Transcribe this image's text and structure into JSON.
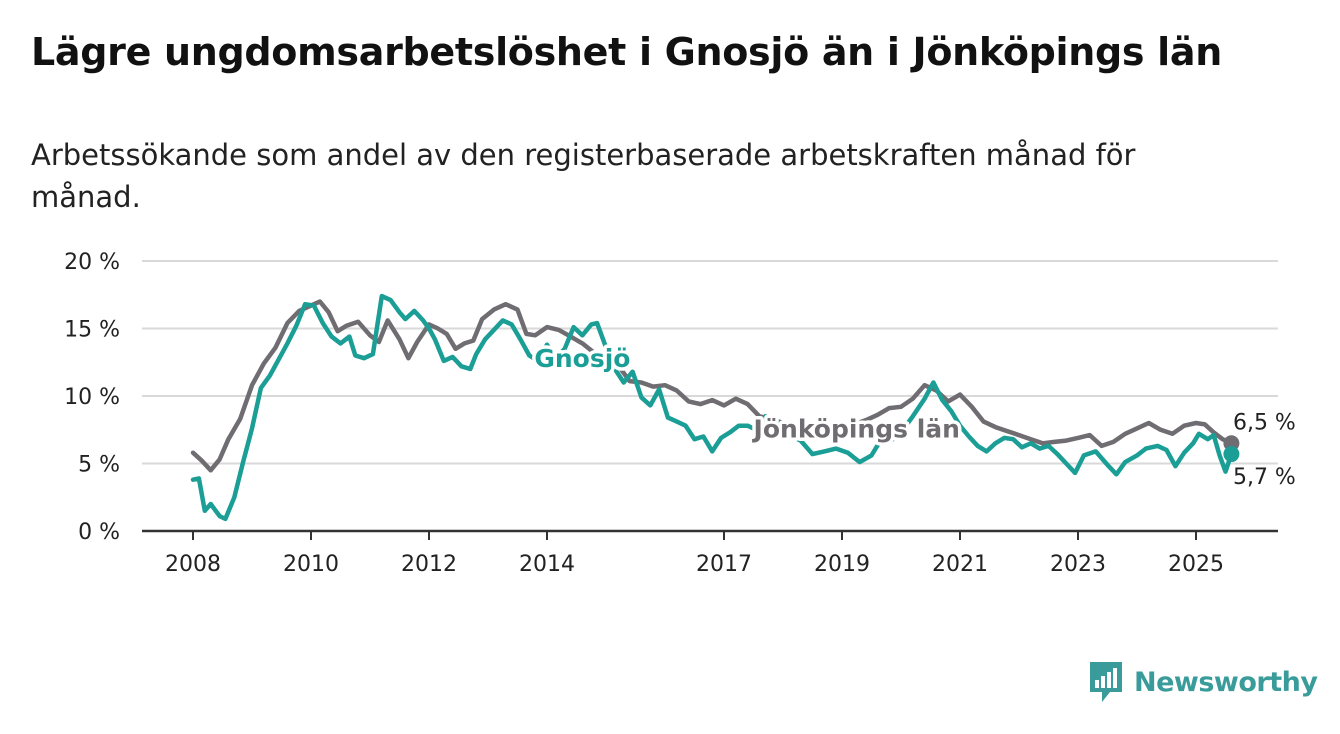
{
  "title": "Lägre ungdomsarbetslöshet i Gnosjö än i Jönköpings län",
  "subtitle": "Arbetssökande som andel av den registerbaserade arbetskraften månad för månad.",
  "brand": {
    "name": "Newsworthy",
    "icon": "newsworthy-logo-icon",
    "color": "#3a9b9b"
  },
  "chart_data": {
    "type": "line",
    "grid": true,
    "ylim": [
      0,
      20
    ],
    "xlim": [
      2007.6,
      2026.3
    ],
    "y_ticks": [
      {
        "value": 0,
        "label": "0 %"
      },
      {
        "value": 5,
        "label": "5 %"
      },
      {
        "value": 10,
        "label": "10 %"
      },
      {
        "value": 15,
        "label": "15 %"
      },
      {
        "value": 20,
        "label": "20 %"
      }
    ],
    "x_ticks": [
      {
        "value": 2008,
        "label": "2008"
      },
      {
        "value": 2010,
        "label": "2010"
      },
      {
        "value": 2012,
        "label": "2012"
      },
      {
        "value": 2014,
        "label": "2014"
      },
      {
        "value": 2017,
        "label": "2017"
      },
      {
        "value": 2019,
        "label": "2019"
      },
      {
        "value": 2021,
        "label": "2021"
      },
      {
        "value": 2023,
        "label": "2023"
      },
      {
        "value": 2025,
        "label": "2025"
      }
    ],
    "series": [
      {
        "name": "Jönköpings län",
        "color": "#6f6d72",
        "end_label": "6,5 %",
        "points": [
          [
            2008.0,
            5.8
          ],
          [
            2008.15,
            5.2
          ],
          [
            2008.3,
            4.5
          ],
          [
            2008.45,
            5.3
          ],
          [
            2008.6,
            6.8
          ],
          [
            2008.8,
            8.3
          ],
          [
            2009.0,
            10.8
          ],
          [
            2009.2,
            12.4
          ],
          [
            2009.4,
            13.6
          ],
          [
            2009.6,
            15.4
          ],
          [
            2009.8,
            16.3
          ],
          [
            2010.0,
            16.7
          ],
          [
            2010.15,
            17.0
          ],
          [
            2010.3,
            16.2
          ],
          [
            2010.45,
            14.8
          ],
          [
            2010.6,
            15.2
          ],
          [
            2010.8,
            15.5
          ],
          [
            2011.0,
            14.5
          ],
          [
            2011.15,
            14.0
          ],
          [
            2011.3,
            15.6
          ],
          [
            2011.5,
            14.2
          ],
          [
            2011.65,
            12.8
          ],
          [
            2011.8,
            14.0
          ],
          [
            2012.0,
            15.3
          ],
          [
            2012.15,
            15.0
          ],
          [
            2012.3,
            14.6
          ],
          [
            2012.45,
            13.5
          ],
          [
            2012.6,
            13.9
          ],
          [
            2012.75,
            14.1
          ],
          [
            2012.9,
            15.7
          ],
          [
            2013.1,
            16.4
          ],
          [
            2013.3,
            16.8
          ],
          [
            2013.5,
            16.4
          ],
          [
            2013.65,
            14.6
          ],
          [
            2013.8,
            14.5
          ],
          [
            2014.0,
            15.1
          ],
          [
            2014.2,
            14.9
          ],
          [
            2014.4,
            14.4
          ],
          [
            2014.6,
            13.9
          ],
          [
            2014.8,
            13.2
          ],
          [
            2015.0,
            12.7
          ],
          [
            2015.2,
            12.3
          ],
          [
            2015.4,
            11.1
          ],
          [
            2015.6,
            11.0
          ],
          [
            2015.8,
            10.7
          ],
          [
            2016.0,
            10.8
          ],
          [
            2016.2,
            10.4
          ],
          [
            2016.4,
            9.6
          ],
          [
            2016.6,
            9.4
          ],
          [
            2016.8,
            9.7
          ],
          [
            2017.0,
            9.3
          ],
          [
            2017.2,
            9.8
          ],
          [
            2017.4,
            9.4
          ],
          [
            2017.6,
            8.5
          ],
          [
            2017.8,
            8.3
          ],
          [
            2018.0,
            8.0
          ],
          [
            2018.2,
            7.6
          ],
          [
            2018.4,
            7.2
          ],
          [
            2018.6,
            7.0
          ],
          [
            2018.8,
            7.1
          ],
          [
            2019.0,
            7.4
          ],
          [
            2019.2,
            7.9
          ],
          [
            2019.4,
            8.2
          ],
          [
            2019.6,
            8.6
          ],
          [
            2019.8,
            9.1
          ],
          [
            2020.0,
            9.2
          ],
          [
            2020.2,
            9.8
          ],
          [
            2020.4,
            10.8
          ],
          [
            2020.6,
            10.4
          ],
          [
            2020.8,
            9.6
          ],
          [
            2021.0,
            10.1
          ],
          [
            2021.2,
            9.2
          ],
          [
            2021.4,
            8.1
          ],
          [
            2021.6,
            7.7
          ],
          [
            2021.8,
            7.4
          ],
          [
            2022.0,
            7.1
          ],
          [
            2022.2,
            6.8
          ],
          [
            2022.4,
            6.5
          ],
          [
            2022.6,
            6.6
          ],
          [
            2022.8,
            6.7
          ],
          [
            2023.0,
            6.9
          ],
          [
            2023.2,
            7.1
          ],
          [
            2023.4,
            6.3
          ],
          [
            2023.6,
            6.6
          ],
          [
            2023.8,
            7.2
          ],
          [
            2024.0,
            7.6
          ],
          [
            2024.2,
            8.0
          ],
          [
            2024.4,
            7.5
          ],
          [
            2024.6,
            7.2
          ],
          [
            2024.8,
            7.8
          ],
          [
            2025.0,
            8.0
          ],
          [
            2025.15,
            7.9
          ],
          [
            2025.3,
            7.3
          ],
          [
            2025.45,
            6.8
          ],
          [
            2025.6,
            6.5
          ]
        ]
      },
      {
        "name": "Gnosjö",
        "color": "#1a9e96",
        "end_label": "5,7 %",
        "points": [
          [
            2008.0,
            3.8
          ],
          [
            2008.1,
            3.9
          ],
          [
            2008.2,
            1.5
          ],
          [
            2008.3,
            2.0
          ],
          [
            2008.45,
            1.1
          ],
          [
            2008.55,
            0.9
          ],
          [
            2008.7,
            2.5
          ],
          [
            2008.85,
            5.1
          ],
          [
            2009.0,
            7.6
          ],
          [
            2009.15,
            10.6
          ],
          [
            2009.3,
            11.5
          ],
          [
            2009.45,
            12.7
          ],
          [
            2009.6,
            13.9
          ],
          [
            2009.75,
            15.2
          ],
          [
            2009.9,
            16.8
          ],
          [
            2010.05,
            16.7
          ],
          [
            2010.2,
            15.4
          ],
          [
            2010.35,
            14.4
          ],
          [
            2010.5,
            13.9
          ],
          [
            2010.65,
            14.4
          ],
          [
            2010.75,
            13.0
          ],
          [
            2010.9,
            12.8
          ],
          [
            2011.05,
            13.1
          ],
          [
            2011.2,
            17.4
          ],
          [
            2011.35,
            17.1
          ],
          [
            2011.5,
            16.2
          ],
          [
            2011.6,
            15.7
          ],
          [
            2011.75,
            16.3
          ],
          [
            2011.9,
            15.6
          ],
          [
            2012.0,
            15.0
          ],
          [
            2012.1,
            14.2
          ],
          [
            2012.25,
            12.6
          ],
          [
            2012.4,
            12.9
          ],
          [
            2012.55,
            12.2
          ],
          [
            2012.7,
            12.0
          ],
          [
            2012.8,
            13.1
          ],
          [
            2012.95,
            14.2
          ],
          [
            2013.1,
            14.9
          ],
          [
            2013.25,
            15.6
          ],
          [
            2013.4,
            15.3
          ],
          [
            2013.55,
            14.2
          ],
          [
            2013.7,
            13.0
          ],
          [
            2013.85,
            12.6
          ],
          [
            2014.0,
            13.8
          ],
          [
            2014.15,
            12.8
          ],
          [
            2014.3,
            13.5
          ],
          [
            2014.45,
            15.1
          ],
          [
            2014.6,
            14.5
          ],
          [
            2014.75,
            15.3
          ],
          [
            2014.85,
            15.4
          ],
          [
            2015.0,
            13.6
          ],
          [
            2015.15,
            12.0
          ],
          [
            2015.3,
            11.0
          ],
          [
            2015.45,
            11.8
          ],
          [
            2015.6,
            9.9
          ],
          [
            2015.75,
            9.3
          ],
          [
            2015.9,
            10.5
          ],
          [
            2016.05,
            8.4
          ],
          [
            2016.2,
            8.1
          ],
          [
            2016.35,
            7.8
          ],
          [
            2016.5,
            6.8
          ],
          [
            2016.65,
            7.0
          ],
          [
            2016.8,
            5.9
          ],
          [
            2016.95,
            6.9
          ],
          [
            2017.1,
            7.3
          ],
          [
            2017.25,
            7.8
          ],
          [
            2017.4,
            7.8
          ],
          [
            2017.55,
            7.5
          ],
          [
            2017.7,
            8.5
          ],
          [
            2017.85,
            8.4
          ],
          [
            2018.0,
            7.6
          ],
          [
            2018.15,
            7.0
          ],
          [
            2018.3,
            6.7
          ],
          [
            2018.5,
            5.7
          ],
          [
            2018.7,
            5.9
          ],
          [
            2018.9,
            6.1
          ],
          [
            2019.1,
            5.8
          ],
          [
            2019.3,
            5.1
          ],
          [
            2019.5,
            5.6
          ],
          [
            2019.65,
            6.7
          ],
          [
            2019.8,
            6.6
          ],
          [
            2020.0,
            7.3
          ],
          [
            2020.2,
            8.5
          ],
          [
            2020.4,
            9.8
          ],
          [
            2020.55,
            11.0
          ],
          [
            2020.7,
            9.7
          ],
          [
            2020.85,
            8.9
          ],
          [
            2021.0,
            7.8
          ],
          [
            2021.15,
            7.0
          ],
          [
            2021.3,
            6.3
          ],
          [
            2021.45,
            5.9
          ],
          [
            2021.6,
            6.5
          ],
          [
            2021.75,
            6.9
          ],
          [
            2021.9,
            6.8
          ],
          [
            2022.05,
            6.2
          ],
          [
            2022.2,
            6.5
          ],
          [
            2022.35,
            6.1
          ],
          [
            2022.5,
            6.3
          ],
          [
            2022.65,
            5.7
          ],
          [
            2022.8,
            5.0
          ],
          [
            2022.95,
            4.3
          ],
          [
            2023.1,
            5.6
          ],
          [
            2023.3,
            5.9
          ],
          [
            2023.5,
            4.9
          ],
          [
            2023.65,
            4.2
          ],
          [
            2023.8,
            5.1
          ],
          [
            2024.0,
            5.6
          ],
          [
            2024.15,
            6.1
          ],
          [
            2024.35,
            6.3
          ],
          [
            2024.5,
            6.0
          ],
          [
            2024.65,
            4.8
          ],
          [
            2024.8,
            5.8
          ],
          [
            2024.95,
            6.5
          ],
          [
            2025.05,
            7.2
          ],
          [
            2025.2,
            6.8
          ],
          [
            2025.3,
            7.1
          ],
          [
            2025.4,
            5.6
          ],
          [
            2025.5,
            4.4
          ],
          [
            2025.6,
            5.7
          ]
        ]
      }
    ],
    "inline_labels": [
      {
        "text": "Gnosjö",
        "series": "Gnosjö",
        "at": [
          2014.6,
          12.8
        ]
      },
      {
        "text": "Jönköpings län",
        "series": "Jönköpings län",
        "at": [
          2019.25,
          7.6
        ]
      }
    ]
  }
}
